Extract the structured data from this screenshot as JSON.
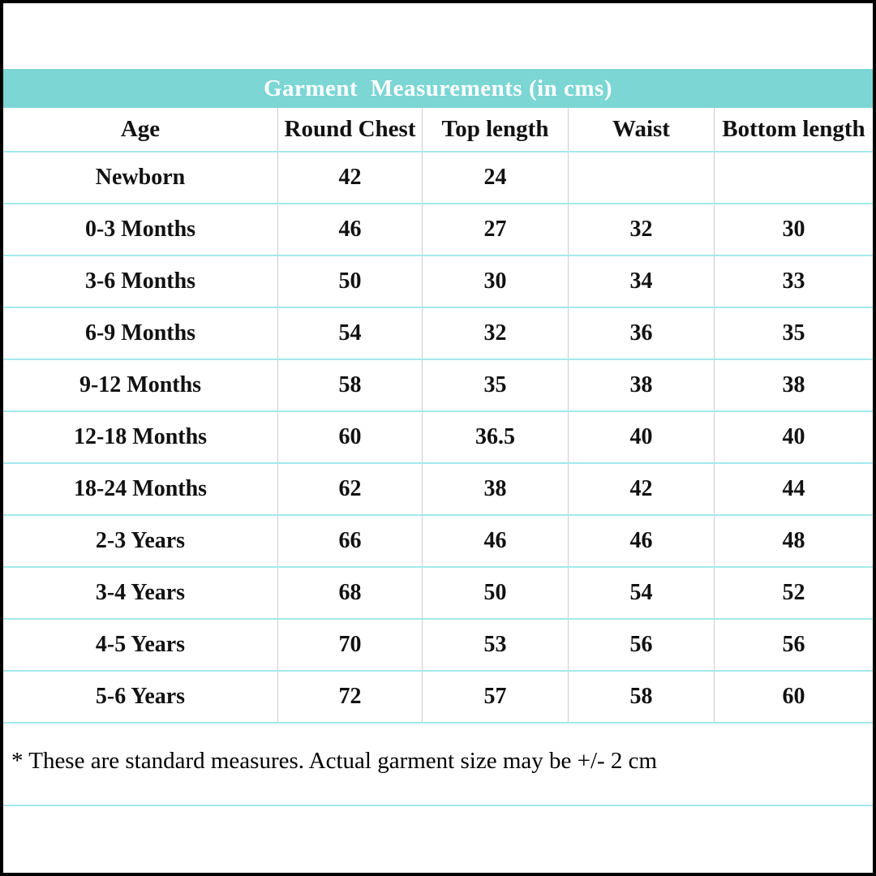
{
  "title": "Garment  Measurements (in cms)",
  "footnote": "* These are standard measures. Actual garment size may be +/- 2 cm",
  "colors": {
    "header_bg": "#7bd6d4",
    "title_text": "#ffffff",
    "row_divider": "#a3e9eb",
    "column_divider": "#cccccc",
    "page_border": "#000000",
    "text": "#111111"
  },
  "chart_data": {
    "type": "table",
    "title": "Garment  Measurements (in cms)",
    "columns": [
      "Age",
      "Round Chest",
      "Top length",
      "Waist",
      "Bottom length"
    ],
    "rows": [
      [
        "Newborn",
        "42",
        "24",
        "",
        ""
      ],
      [
        "0-3 Months",
        "46",
        "27",
        "32",
        "30"
      ],
      [
        "3-6 Months",
        "50",
        "30",
        "34",
        "33"
      ],
      [
        "6-9 Months",
        "54",
        "32",
        "36",
        "35"
      ],
      [
        "9-12 Months",
        "58",
        "35",
        "38",
        "38"
      ],
      [
        "12-18 Months",
        "60",
        "36.5",
        "40",
        "40"
      ],
      [
        "18-24 Months",
        "62",
        "38",
        "42",
        "44"
      ],
      [
        "2-3 Years",
        "66",
        "46",
        "46",
        "48"
      ],
      [
        "3-4 Years",
        "68",
        "50",
        "54",
        "52"
      ],
      [
        "4-5 Years",
        "70",
        "53",
        "56",
        "56"
      ],
      [
        "5-6 Years",
        "72",
        "57",
        "58",
        "60"
      ]
    ],
    "footnote": "* These are standard measures. Actual garment size may be +/- 2 cm",
    "layout_hints": {
      "grid": "horizontal row dividers (pale cyan), vertical column dividers (light gray)",
      "title_position": "top band, centered",
      "empty_cells": "Newborn row has no Waist or Bottom length values"
    }
  }
}
